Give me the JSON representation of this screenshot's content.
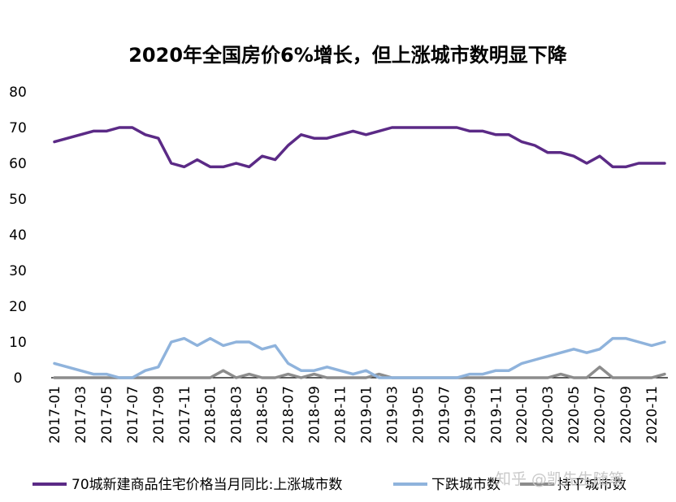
{
  "chart_data": {
    "type": "line",
    "title": "2020年全国房价6%增长，但上涨城市数明显下降",
    "xlabel": "",
    "ylabel": "",
    "ylim": [
      0,
      80
    ],
    "yticks": [
      0,
      10,
      20,
      30,
      40,
      50,
      60,
      70,
      80
    ],
    "xtick_labels": [
      "2017-01",
      "2017-03",
      "2017-05",
      "2017-07",
      "2017-09",
      "2017-11",
      "2018-01",
      "2018-03",
      "2018-05",
      "2018-07",
      "2018-09",
      "2018-11",
      "2019-01",
      "2019-03",
      "2019-05",
      "2019-07",
      "2019-09",
      "2019-11",
      "2020-01",
      "2020-03",
      "2020-05",
      "2020-07",
      "2020-09",
      "2020-11"
    ],
    "x": [
      "2017-01",
      "2017-02",
      "2017-03",
      "2017-04",
      "2017-05",
      "2017-06",
      "2017-07",
      "2017-08",
      "2017-09",
      "2017-10",
      "2017-11",
      "2017-12",
      "2018-01",
      "2018-02",
      "2018-03",
      "2018-04",
      "2018-05",
      "2018-06",
      "2018-07",
      "2018-08",
      "2018-09",
      "2018-10",
      "2018-11",
      "2018-12",
      "2019-01",
      "2019-02",
      "2019-03",
      "2019-04",
      "2019-05",
      "2019-06",
      "2019-07",
      "2019-08",
      "2019-09",
      "2019-10",
      "2019-11",
      "2019-12",
      "2020-01",
      "2020-02",
      "2020-03",
      "2020-04",
      "2020-05",
      "2020-06",
      "2020-07",
      "2020-08",
      "2020-09",
      "2020-10",
      "2020-11",
      "2020-12"
    ],
    "grid": false,
    "legend_position": "bottom",
    "series": [
      {
        "name": "70城新建商品住宅价格当月同比:上涨城市数",
        "color": "#5b2a86",
        "values": [
          66,
          67,
          68,
          69,
          69,
          70,
          70,
          68,
          67,
          60,
          59,
          61,
          59,
          59,
          60,
          59,
          62,
          61,
          65,
          68,
          67,
          67,
          68,
          69,
          68,
          69,
          70,
          70,
          70,
          70,
          70,
          70,
          69,
          69,
          68,
          68,
          66,
          65,
          63,
          63,
          62,
          60,
          62,
          59,
          59,
          60,
          60,
          60
        ]
      },
      {
        "name": "下跌城市数",
        "color": "#8fb3dc",
        "values": [
          4,
          3,
          2,
          1,
          1,
          0,
          0,
          2,
          3,
          10,
          11,
          9,
          11,
          9,
          10,
          10,
          8,
          9,
          4,
          2,
          2,
          3,
          2,
          1,
          2,
          0,
          0,
          0,
          0,
          0,
          0,
          0,
          1,
          1,
          2,
          2,
          4,
          5,
          6,
          7,
          8,
          7,
          8,
          11,
          11,
          10,
          9,
          10
        ]
      },
      {
        "name": "持平城市数",
        "color": "#8c8c8c",
        "values": [
          0,
          0,
          0,
          0,
          0,
          0,
          0,
          0,
          0,
          0,
          0,
          0,
          0,
          2,
          0,
          1,
          0,
          0,
          1,
          0,
          1,
          0,
          0,
          0,
          0,
          1,
          0,
          0,
          0,
          0,
          0,
          0,
          0,
          0,
          0,
          0,
          0,
          0,
          0,
          1,
          0,
          0,
          3,
          0,
          0,
          0,
          0,
          1
        ]
      }
    ]
  },
  "watermark": "知乎 @凯先生随笔"
}
